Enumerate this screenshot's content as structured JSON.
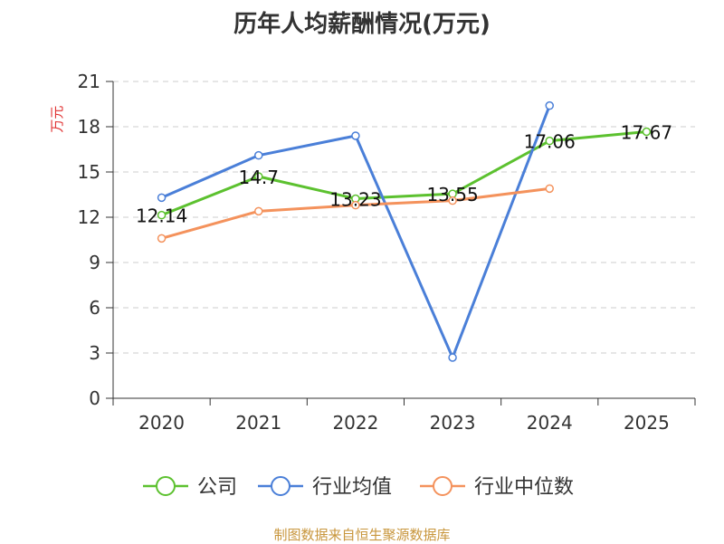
{
  "chart_data": {
    "type": "line",
    "title": "历年人均薪酬情况(万元)",
    "ylabel": "万元",
    "xlabel": "",
    "categories": [
      "2020",
      "2021",
      "2022",
      "2023",
      "2024",
      "2025"
    ],
    "ylim": [
      0,
      21
    ],
    "yticks": [
      0,
      3,
      6,
      9,
      12,
      15,
      18,
      21
    ],
    "grid": true,
    "legend_position": "bottom",
    "series": [
      {
        "name": "公司",
        "color": "#5cc12f",
        "values": [
          12.14,
          14.7,
          13.23,
          13.55,
          17.06,
          17.67
        ],
        "labels": [
          "12.14",
          "14.7",
          "13.23",
          "13.55",
          "17.06",
          "17.67"
        ]
      },
      {
        "name": "行业均值",
        "color": "#4a7fd8",
        "values": [
          13.3,
          16.1,
          17.4,
          2.7,
          19.4,
          null
        ],
        "labels": []
      },
      {
        "name": "行业中位数",
        "color": "#f4925c",
        "values": [
          10.6,
          12.4,
          12.8,
          13.1,
          13.9,
          null
        ],
        "labels": []
      }
    ],
    "source": "制图数据来自恒生聚源数据库"
  }
}
